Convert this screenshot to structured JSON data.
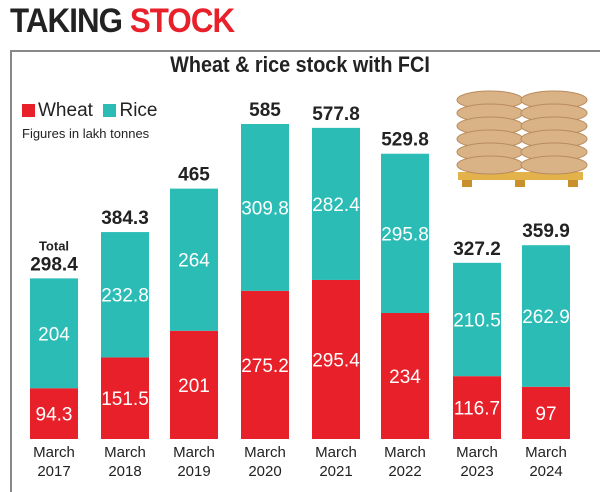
{
  "heading": {
    "part1": "TAKING",
    "part2": "STOCK"
  },
  "chart_data": {
    "type": "bar",
    "stacked": true,
    "title": "Wheat & rice stock with FCI",
    "units_note": "Figures in lakh tonnes",
    "total_label": "Total",
    "categories": [
      "March 2017",
      "March 2018",
      "March 2019",
      "March 2020",
      "March 2021",
      "March 2022",
      "March 2023",
      "March 2024"
    ],
    "series": [
      {
        "name": "Wheat",
        "color": "#e8202a",
        "values": [
          94.3,
          151.5,
          201,
          275.2,
          295.4,
          234,
          116.7,
          97
        ]
      },
      {
        "name": "Rice",
        "color": "#2bbcb6",
        "values": [
          204,
          232.8,
          264,
          309.8,
          282.4,
          295.8,
          210.5,
          262.9
        ]
      }
    ],
    "totals": [
      "298.4",
      "384.3",
      "465",
      "585",
      "577.8",
      "529.8",
      "327.2",
      "359.9"
    ],
    "wheat_labels": [
      "94.3",
      "151.5",
      "201",
      "275.2",
      "295.4",
      "234",
      "116.7",
      "97"
    ],
    "rice_labels": [
      "204",
      "232.8",
      "264",
      "309.8",
      "282.4",
      "295.8",
      "210.5",
      "262.9"
    ],
    "ylim": [
      0,
      585
    ]
  },
  "image": "grain-sacks-on-pallet"
}
